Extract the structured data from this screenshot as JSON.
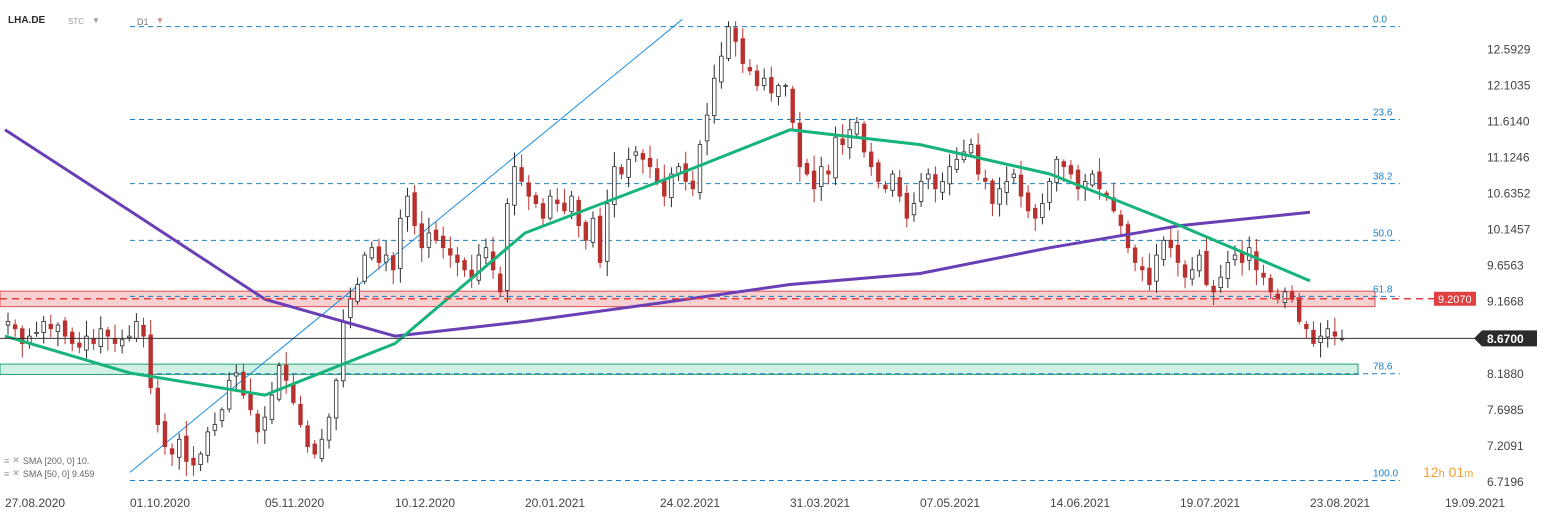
{
  "header": {
    "symbol": "LHA.DE",
    "market": "STC",
    "interval": "D1"
  },
  "legend": [
    {
      "label": "SMA [200, 0] 10.",
      "color": "#6a3fb5"
    },
    {
      "label": "SMA [50, 0] 9.459",
      "color": "#16b37a"
    }
  ],
  "timer": {
    "hours": "12",
    "h_unit": "h",
    "minutes": "01",
    "m_unit": "m"
  },
  "colors": {
    "sma200": "#6a3fb5",
    "sma50": "#16b37a",
    "bull": "#2b2b2b",
    "bear": "#b8312f",
    "fib": "#1b7fc4",
    "trendline": "#1b8ee0",
    "last_price_badge": "#2b2b2b",
    "level_badge": "#e04040",
    "resist_zone": "#f6c9c9",
    "support_zone": "#c9efe0"
  },
  "chart_data": {
    "type": "candlestick",
    "title": "",
    "ylim": [
      6.7196,
      13.0
    ],
    "x_tick_labels": [
      "27.08.2020",
      "01.10.2020",
      "05.11.2020",
      "10.12.2020",
      "20.01.2021",
      "24.02.2021",
      "31.03.2021",
      "07.05.2021",
      "14.06.2021",
      "19.07.2021",
      "23.08.2021",
      "19.09.2021"
    ],
    "y_tick_labels": [
      "12.5929",
      "12.1035",
      "11.6140",
      "11.1246",
      "10.6352",
      "10.1457",
      "9.6563",
      "9.1668",
      "8.1880",
      "7.6985",
      "7.2091",
      "6.7196"
    ],
    "last_price": "8.6700",
    "marked_level": "9.2070",
    "fibonacci": [
      {
        "label": "0.0",
        "price": 12.9
      },
      {
        "label": "23.6",
        "price": 11.64
      },
      {
        "label": "38.2",
        "price": 10.77
      },
      {
        "label": "50.0",
        "price": 10.0
      },
      {
        "label": "61.8",
        "price": 9.24
      },
      {
        "label": "78.6",
        "price": 8.19
      },
      {
        "label": "100.0",
        "price": 6.74
      }
    ],
    "zones": [
      {
        "name": "resistance",
        "low": 9.1,
        "high": 9.31
      },
      {
        "name": "support",
        "low": 8.18,
        "high": 8.32
      }
    ],
    "trendline": [
      [
        "01.10.2020",
        6.85
      ],
      [
        "02.03.2021",
        13.0
      ]
    ],
    "sma200": [
      [
        "27.08.2020",
        11.5
      ],
      [
        "01.10.2020",
        10.4
      ],
      [
        "05.11.2020",
        9.2
      ],
      [
        "10.12.2020",
        8.7
      ],
      [
        "20.01.2021",
        8.9
      ],
      [
        "24.02.2021",
        9.15
      ],
      [
        "31.03.2021",
        9.4
      ],
      [
        "07.05.2021",
        9.55
      ],
      [
        "14.06.2021",
        9.9
      ],
      [
        "19.07.2021",
        10.2
      ],
      [
        "23.08.2021",
        10.38
      ]
    ],
    "sma50": [
      [
        "27.08.2020",
        8.7
      ],
      [
        "01.10.2020",
        8.2
      ],
      [
        "05.11.2020",
        7.9
      ],
      [
        "10.12.2020",
        8.6
      ],
      [
        "20.01.2021",
        10.1
      ],
      [
        "24.02.2021",
        10.8
      ],
      [
        "31.03.2021",
        11.5
      ],
      [
        "07.05.2021",
        11.3
      ],
      [
        "14.06.2021",
        10.9
      ],
      [
        "19.07.2021",
        10.2
      ],
      [
        "23.08.2021",
        9.45
      ]
    ],
    "candles_close": [
      8.9,
      8.8,
      8.6,
      8.7,
      8.75,
      8.9,
      8.8,
      8.85,
      8.7,
      8.6,
      8.55,
      8.7,
      8.6,
      8.8,
      8.7,
      8.6,
      8.65,
      8.7,
      8.9,
      8.7,
      8.0,
      7.5,
      7.2,
      7.1,
      7.3,
      7.0,
      6.95,
      7.1,
      7.4,
      7.5,
      7.7,
      8.1,
      8.2,
      7.9,
      7.7,
      7.4,
      7.6,
      7.9,
      8.3,
      8.1,
      7.8,
      7.5,
      7.2,
      7.1,
      7.3,
      7.6,
      8.1,
      8.9,
      9.2,
      9.4,
      9.8,
      9.9,
      9.7,
      9.8,
      9.6,
      10.3,
      10.6,
      10.2,
      9.9,
      10.1,
      10.0,
      9.9,
      9.8,
      9.7,
      9.6,
      9.5,
      9.8,
      9.9,
      9.6,
      9.3,
      10.5,
      11.0,
      10.8,
      10.6,
      10.5,
      10.3,
      10.6,
      10.5,
      10.4,
      10.6,
      10.2,
      10.0,
      10.3,
      9.7,
      10.5,
      11.0,
      10.9,
      11.1,
      11.2,
      11.1,
      11.0,
      10.8,
      10.6,
      10.9,
      11.0,
      10.8,
      10.7,
      11.3,
      11.7,
      12.2,
      12.5,
      12.9,
      12.7,
      12.4,
      12.3,
      12.1,
      12.2,
      12.0,
      12.1,
      12.1,
      11.6,
      11.0,
      10.9,
      10.7,
      11.0,
      10.9,
      11.4,
      11.3,
      11.5,
      11.6,
      11.2,
      11.0,
      10.8,
      10.7,
      10.9,
      10.6,
      10.3,
      10.5,
      10.8,
      10.9,
      10.7,
      10.8,
      11.0,
      11.1,
      11.2,
      11.3,
      10.9,
      10.8,
      10.5,
      10.7,
      10.8,
      10.9,
      10.6,
      10.4,
      10.3,
      10.5,
      10.8,
      11.1,
      11.0,
      10.9,
      10.7,
      10.8,
      10.9,
      10.7,
      10.6,
      10.4,
      10.2,
      9.9,
      9.7,
      9.6,
      9.4,
      9.8,
      10.0,
      9.9,
      9.7,
      9.5,
      9.6,
      9.8,
      9.4,
      9.3,
      9.5,
      9.7,
      9.8,
      9.7,
      9.9,
      9.6,
      9.5,
      9.3,
      9.2,
      9.3,
      9.2,
      8.9,
      8.8,
      8.6,
      8.7,
      8.8,
      8.7,
      8.67
    ]
  }
}
